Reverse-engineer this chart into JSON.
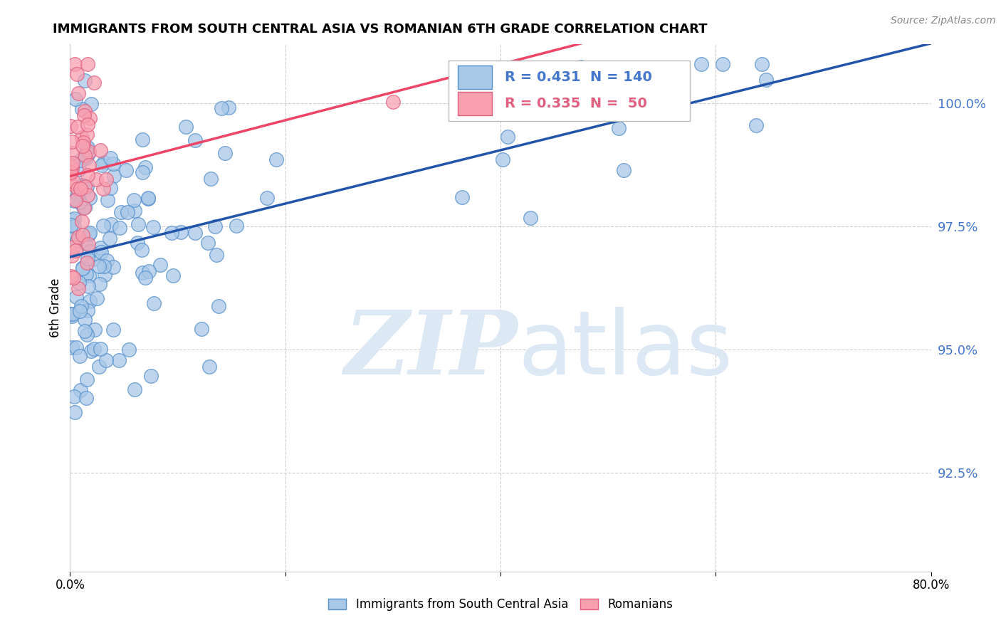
{
  "title": "IMMIGRANTS FROM SOUTH CENTRAL ASIA VS ROMANIAN 6TH GRADE CORRELATION CHART",
  "source": "Source: ZipAtlas.com",
  "ylabel": "6th Grade",
  "y_ticks": [
    92.5,
    95.0,
    97.5,
    100.0
  ],
  "y_tick_labels": [
    "92.5%",
    "95.0%",
    "97.5%",
    "100.0%"
  ],
  "xlim": [
    0.0,
    80.0
  ],
  "ylim": [
    90.5,
    101.2
  ],
  "legend_labels": [
    "Immigrants from South Central Asia",
    "Romanians"
  ],
  "blue_R": 0.431,
  "blue_N": 140,
  "pink_R": 0.335,
  "pink_N": 50,
  "blue_fill_color": "#A8C8E8",
  "blue_edge_color": "#5590CC",
  "pink_fill_color": "#F8A0B0",
  "pink_edge_color": "#E06080",
  "blue_line_color": "#2255AA",
  "pink_line_color": "#EE4466",
  "watermark_zip": "ZIP",
  "watermark_atlas": "atlas",
  "watermark_color": "#DDE8F5",
  "blue_legend_fill": "#A8C8E8",
  "blue_legend_edge": "#5590CC",
  "pink_legend_fill": "#F8A0B0",
  "pink_legend_edge": "#E06080",
  "tick_color": "#4477CC",
  "grid_color": "#CCCCCC",
  "x_tick_positions": [
    0,
    20,
    40,
    60,
    80
  ],
  "x_tick_labels": [
    "0.0%",
    "",
    "",
    "",
    "80.0%"
  ]
}
